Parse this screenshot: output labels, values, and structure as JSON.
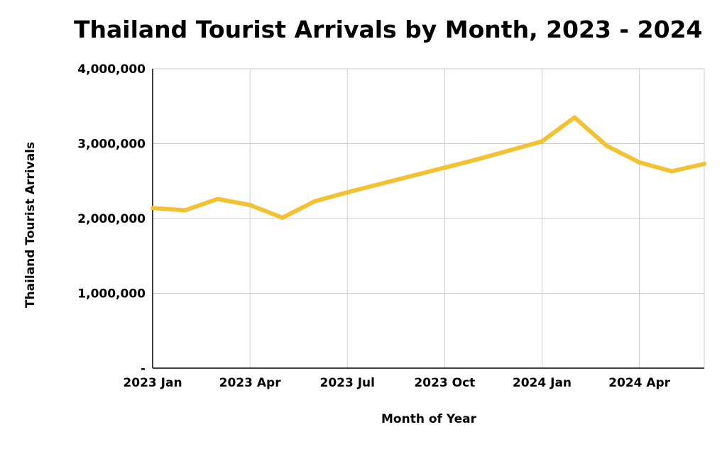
{
  "chart_data": {
    "type": "line",
    "title": "Thailand Tourist Arrivals by Month, 2023 - 2024",
    "xlabel": "Month of Year",
    "ylabel": "Thailand Tourist Arrivals",
    "ylim": [
      0,
      4000000
    ],
    "yticks": [
      0,
      1000000,
      2000000,
      3000000,
      4000000
    ],
    "ytick_labels": [
      "-",
      "1,000,000",
      "2,000,000",
      "3,000,000",
      "4,000,000"
    ],
    "xlim": [
      "2023-01",
      "2024-06"
    ],
    "xticks": [
      "2023-01",
      "2023-04",
      "2023-07",
      "2023-10",
      "2024-01",
      "2024-04"
    ],
    "xtick_labels": [
      "2023 Jan",
      "2023 Apr",
      "2023 Jul",
      "2023 Oct",
      "2024 Jan",
      "2024 Apr"
    ],
    "grid": true,
    "legend": "none",
    "line_color": "#f2c232",
    "grid_color": "#cccccc",
    "x": [
      "2023-01",
      "2023-02",
      "2023-03",
      "2023-04",
      "2023-05",
      "2023-06",
      "2023-07",
      "2023-08",
      "2023-09",
      "2023-10",
      "2023-11",
      "2023-12",
      "2024-01",
      "2024-02",
      "2024-03",
      "2024-04",
      "2024-05",
      "2024-06"
    ],
    "series": [
      {
        "values": [
          2140000,
          2110000,
          2260000,
          2180000,
          2010000,
          2230000,
          2350000,
          2460000,
          2570000,
          2680000,
          2790000,
          2910000,
          3030000,
          3350000,
          2970000,
          2750000,
          2630000,
          2730000
        ]
      }
    ]
  }
}
